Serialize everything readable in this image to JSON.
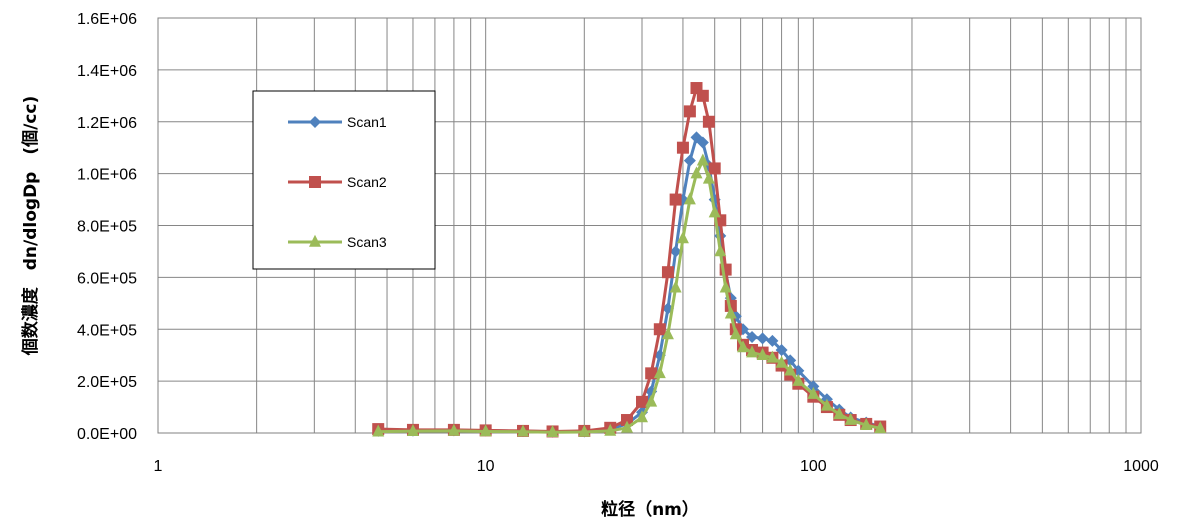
{
  "chart_data": {
    "type": "line",
    "xlabel": "粒径（nm）",
    "ylabel": "個数濃度　dn/dlogDp　(個/cc)",
    "xscale": "log",
    "xlim": [
      1,
      1000
    ],
    "ylim": [
      0,
      1600000
    ],
    "x_ticks": [
      "1",
      "10",
      "100",
      "1000"
    ],
    "y_ticks": [
      "0.0E+00",
      "2.0E+05",
      "4.0E+05",
      "6.0E+05",
      "8.0E+05",
      "1.0E+06",
      "1.2E+06",
      "1.4E+06",
      "1.6E+06"
    ],
    "grid": true,
    "legend_position": "upper-left",
    "series": [
      {
        "name": "Scan1",
        "color": "#4F81BD",
        "marker": "diamond",
        "points": [
          [
            4.7,
            8000
          ],
          [
            6,
            9000
          ],
          [
            8,
            10000
          ],
          [
            10,
            9000
          ],
          [
            13,
            7000
          ],
          [
            16,
            5000
          ],
          [
            20,
            6000
          ],
          [
            24,
            15000
          ],
          [
            27,
            35000
          ],
          [
            30,
            80000
          ],
          [
            32,
            160000
          ],
          [
            34,
            300000
          ],
          [
            36,
            480000
          ],
          [
            38,
            700000
          ],
          [
            40,
            900000
          ],
          [
            42,
            1050000
          ],
          [
            44,
            1140000
          ],
          [
            46,
            1120000
          ],
          [
            48,
            1030000
          ],
          [
            50,
            900000
          ],
          [
            52,
            760000
          ],
          [
            54,
            620000
          ],
          [
            56,
            520000
          ],
          [
            58,
            450000
          ],
          [
            61,
            400000
          ],
          [
            65,
            370000
          ],
          [
            70,
            365000
          ],
          [
            75,
            355000
          ],
          [
            80,
            320000
          ],
          [
            85,
            280000
          ],
          [
            90,
            240000
          ],
          [
            100,
            180000
          ],
          [
            110,
            130000
          ],
          [
            120,
            90000
          ],
          [
            130,
            60000
          ],
          [
            145,
            40000
          ],
          [
            160,
            25000
          ]
        ]
      },
      {
        "name": "Scan2",
        "color": "#C0504D",
        "marker": "square",
        "points": [
          [
            4.7,
            15000
          ],
          [
            6,
            12000
          ],
          [
            8,
            12000
          ],
          [
            10,
            10000
          ],
          [
            13,
            8000
          ],
          [
            16,
            6000
          ],
          [
            20,
            8000
          ],
          [
            24,
            20000
          ],
          [
            27,
            50000
          ],
          [
            30,
            120000
          ],
          [
            32,
            230000
          ],
          [
            34,
            400000
          ],
          [
            36,
            620000
          ],
          [
            38,
            900000
          ],
          [
            40,
            1100000
          ],
          [
            42,
            1240000
          ],
          [
            44,
            1330000
          ],
          [
            46,
            1300000
          ],
          [
            48,
            1200000
          ],
          [
            50,
            1020000
          ],
          [
            52,
            820000
          ],
          [
            54,
            630000
          ],
          [
            56,
            490000
          ],
          [
            58,
            400000
          ],
          [
            61,
            340000
          ],
          [
            65,
            320000
          ],
          [
            70,
            310000
          ],
          [
            75,
            290000
          ],
          [
            80,
            260000
          ],
          [
            85,
            225000
          ],
          [
            90,
            190000
          ],
          [
            100,
            140000
          ],
          [
            110,
            100000
          ],
          [
            120,
            70000
          ],
          [
            130,
            50000
          ],
          [
            145,
            35000
          ],
          [
            160,
            25000
          ]
        ]
      },
      {
        "name": "Scan3",
        "color": "#9BBB59",
        "marker": "triangle",
        "points": [
          [
            4.7,
            5000
          ],
          [
            6,
            7000
          ],
          [
            8,
            8000
          ],
          [
            10,
            6000
          ],
          [
            13,
            5000
          ],
          [
            16,
            3000
          ],
          [
            20,
            4000
          ],
          [
            24,
            8000
          ],
          [
            27,
            20000
          ],
          [
            30,
            60000
          ],
          [
            32,
            120000
          ],
          [
            34,
            230000
          ],
          [
            36,
            380000
          ],
          [
            38,
            560000
          ],
          [
            40,
            750000
          ],
          [
            42,
            900000
          ],
          [
            44,
            1000000
          ],
          [
            46,
            1050000
          ],
          [
            48,
            980000
          ],
          [
            50,
            850000
          ],
          [
            52,
            700000
          ],
          [
            54,
            560000
          ],
          [
            56,
            460000
          ],
          [
            58,
            380000
          ],
          [
            61,
            330000
          ],
          [
            65,
            310000
          ],
          [
            70,
            300000
          ],
          [
            75,
            290000
          ],
          [
            80,
            270000
          ],
          [
            85,
            240000
          ],
          [
            90,
            200000
          ],
          [
            100,
            150000
          ],
          [
            110,
            105000
          ],
          [
            120,
            72000
          ],
          [
            130,
            50000
          ],
          [
            145,
            30000
          ],
          [
            160,
            18000
          ]
        ]
      }
    ]
  }
}
